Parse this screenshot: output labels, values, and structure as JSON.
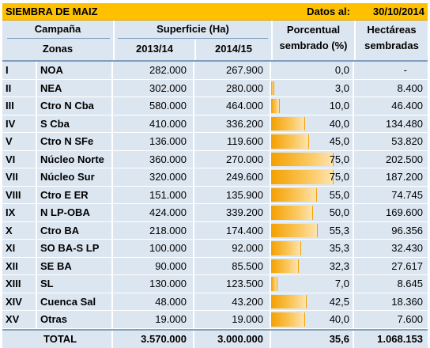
{
  "title": "SIEMBRA DE MAIZ",
  "date_label": "Datos al:",
  "date_value": "30/10/2014",
  "headers": {
    "campana": "Campaña",
    "zonas": "Zonas",
    "superficie": "Superficie (Ha)",
    "y1": "2013/14",
    "y2": "2014/15",
    "pct_line1": "Porcentual",
    "pct_line2": "sembrado (%)",
    "ha_line1": "Hectáreas",
    "ha_line2": "sembradas"
  },
  "rows": [
    {
      "num": "I",
      "zona": "NOA",
      "s1": "282.000",
      "s2": "267.900",
      "pct": "0,0",
      "pct_value": 0.0,
      "ha": "-"
    },
    {
      "num": "II",
      "zona": "NEA",
      "s1": "302.000",
      "s2": "280.000",
      "pct": "3,0",
      "pct_value": 3.0,
      "ha": "8.400"
    },
    {
      "num": "III",
      "zona": "Ctro N Cba",
      "s1": "580.000",
      "s2": "464.000",
      "pct": "10,0",
      "pct_value": 10.0,
      "ha": "46.400"
    },
    {
      "num": "IV",
      "zona": "S Cba",
      "s1": "410.000",
      "s2": "336.200",
      "pct": "40,0",
      "pct_value": 40.0,
      "ha": "134.480"
    },
    {
      "num": "V",
      "zona": "Ctro N SFe",
      "s1": "136.000",
      "s2": "119.600",
      "pct": "45,0",
      "pct_value": 45.0,
      "ha": "53.820"
    },
    {
      "num": "VI",
      "zona": "Núcleo Norte",
      "s1": "360.000",
      "s2": "270.000",
      "pct": "75,0",
      "pct_value": 75.0,
      "ha": "202.500"
    },
    {
      "num": "VII",
      "zona": "Núcleo Sur",
      "s1": "320.000",
      "s2": "249.600",
      "pct": "75,0",
      "pct_value": 75.0,
      "ha": "187.200"
    },
    {
      "num": "VIII",
      "zona": "Ctro E ER",
      "s1": "151.000",
      "s2": "135.900",
      "pct": "55,0",
      "pct_value": 55.0,
      "ha": "74.745"
    },
    {
      "num": "IX",
      "zona": "N LP-OBA",
      "s1": "424.000",
      "s2": "339.200",
      "pct": "50,0",
      "pct_value": 50.0,
      "ha": "169.600"
    },
    {
      "num": "X",
      "zona": "Ctro BA",
      "s1": "218.000",
      "s2": "174.400",
      "pct": "55,3",
      "pct_value": 55.3,
      "ha": "96.356"
    },
    {
      "num": "XI",
      "zona": "SO BA-S LP",
      "s1": "100.000",
      "s2": "92.000",
      "pct": "35,3",
      "pct_value": 35.3,
      "ha": "32.430"
    },
    {
      "num": "XII",
      "zona": "SE BA",
      "s1": "90.000",
      "s2": "85.500",
      "pct": "32,3",
      "pct_value": 32.3,
      "ha": "27.617"
    },
    {
      "num": "XIII",
      "zona": "SL",
      "s1": "130.000",
      "s2": "123.500",
      "pct": "7,0",
      "pct_value": 7.0,
      "ha": "8.645"
    },
    {
      "num": "XIV",
      "zona": "Cuenca Sal",
      "s1": "48.000",
      "s2": "43.200",
      "pct": "42,5",
      "pct_value": 42.5,
      "ha": "18.360"
    },
    {
      "num": "XV",
      "zona": "Otras",
      "s1": "19.000",
      "s2": "19.000",
      "pct": "40,0",
      "pct_value": 40.0,
      "ha": "7.600"
    }
  ],
  "total": {
    "label": "TOTAL",
    "s1": "3.570.000",
    "s2": "3.000.000",
    "pct": "35,6",
    "ha": "1.068.153"
  },
  "colors": {
    "title_bg": "#ffc000",
    "cell_bg": "#dce6f1",
    "bar": "#f4a000"
  }
}
